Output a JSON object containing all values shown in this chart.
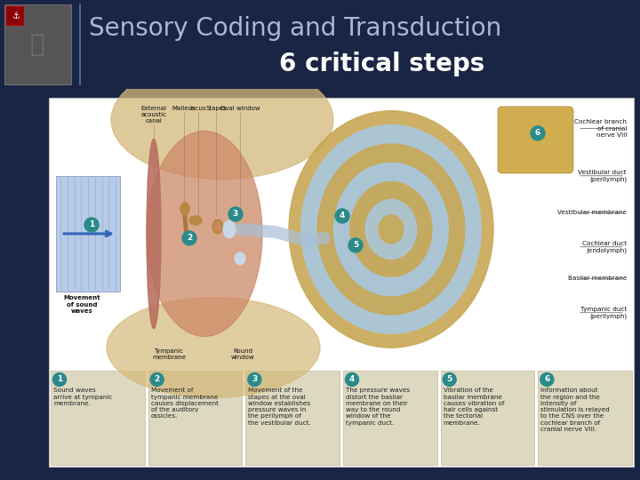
{
  "title_line1": "Sensory Coding and Transduction",
  "title_line2": "6 critical steps",
  "title_color": "#a8b8d8",
  "title_line2_color": "#ffffff",
  "bg_color": "#1a2444",
  "step_bg": "#ddd8c0",
  "step_num_bg": "#2a8a8a",
  "step_num_color": "#ffffff",
  "divider_color": "#5577aa",
  "white_box_bg": "#ffffff",
  "white_box_border": "#bbbbbb",
  "canal_bg": "#b8cce8",
  "canal_stripe": "#8899cc",
  "arrow_color": "#3366bb",
  "tympanic_color": "#d08870",
  "middle_ear_color": "#cc8866",
  "bone_color": "#d4b87a",
  "cochlea_outer": "#c8a855",
  "cochlea_blue": "#a8c8e0",
  "cochlea_inner": "#c8a855",
  "nerve_color": "#c8a030",
  "steps": [
    {
      "num": "1",
      "text": "Sound waves\narrive at tympanic\nmembrane."
    },
    {
      "num": "2",
      "text": "Movement of\ntympanic membrane\ncauses displacement\nof the auditory\nossicles."
    },
    {
      "num": "3",
      "text": "Movement of the\nstapes at the oval\nwindow establishes\npressure waves in\nthe perilymph of\nthe vestibular duct."
    },
    {
      "num": "4",
      "text": "The pressure waves\ndistort the basilar\nmembrane on their\nway to the round\nwindow of the\ntympanic duct."
    },
    {
      "num": "5",
      "text": "Vibration of the\nbasilar membrane\ncauses vibration of\nhair cells against\nthe tectorial\nmembrane."
    },
    {
      "num": "6",
      "text": "Information about\nthe region and the\nintensity of\nstimulation is relayed\nto the CNS over the\ncochlear branch of\ncranial nerve VIII."
    }
  ],
  "labels_right": [
    [
      "Cochlear branch",
      "of cranial",
      "nerve VIII"
    ],
    [
      "Vestibular duct",
      "(perilymph)"
    ],
    [
      "Vestibular membrane"
    ],
    [
      "Cochlear duct",
      "(endolymph)"
    ],
    [
      "Basilar membrane"
    ],
    [
      "Tympanic duct",
      "(perilymph)"
    ]
  ],
  "labels_top": [
    [
      "External",
      "acoustic",
      "canal"
    ],
    [
      "Malleus"
    ],
    [
      "Incus"
    ],
    [
      "Stapes"
    ],
    [
      "Oval window"
    ]
  ],
  "label_left_arrow": "Movement\nof sound\nwaves",
  "label_tympanic": "Tympanic\nmembrane",
  "label_round": "Round\nwindow",
  "title_fontsize": 20,
  "subtitle_fontsize": 20
}
